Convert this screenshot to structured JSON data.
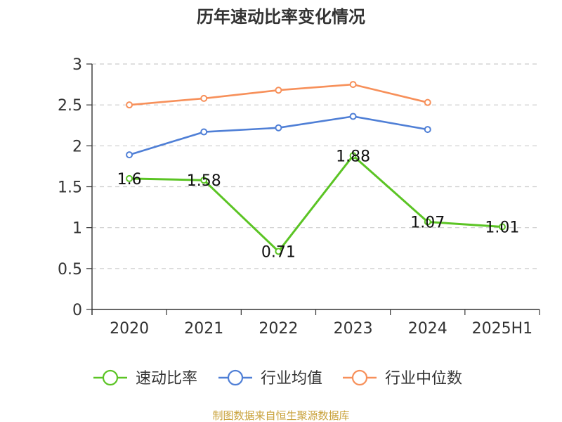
{
  "chart_data": {
    "type": "line",
    "title": "历年速动比率变化情况",
    "categories": [
      "2020",
      "2021",
      "2022",
      "2023",
      "2024",
      "2025H1"
    ],
    "ylim": [
      0,
      3
    ],
    "yticks": [
      "0",
      "0.5",
      "1",
      "1.5",
      "2",
      "2.5",
      "3"
    ],
    "grid": true,
    "legend_position": "bottom",
    "series": [
      {
        "name": "速动比率",
        "color": "#5bc424",
        "values": [
          1.6,
          1.58,
          0.71,
          1.88,
          1.07,
          1.01
        ],
        "labels": [
          "1.6",
          "1.58",
          "0.71",
          "1.88",
          "1.07",
          "1.01"
        ]
      },
      {
        "name": "行业均值",
        "color": "#4f7fd6",
        "values": [
          1.89,
          2.17,
          2.22,
          2.36,
          2.2,
          null
        ]
      },
      {
        "name": "行业中位数",
        "color": "#f7905a",
        "values": [
          2.5,
          2.58,
          2.68,
          2.75,
          2.53,
          null
        ]
      }
    ]
  },
  "source": "制图数据来自恒生聚源数据库"
}
